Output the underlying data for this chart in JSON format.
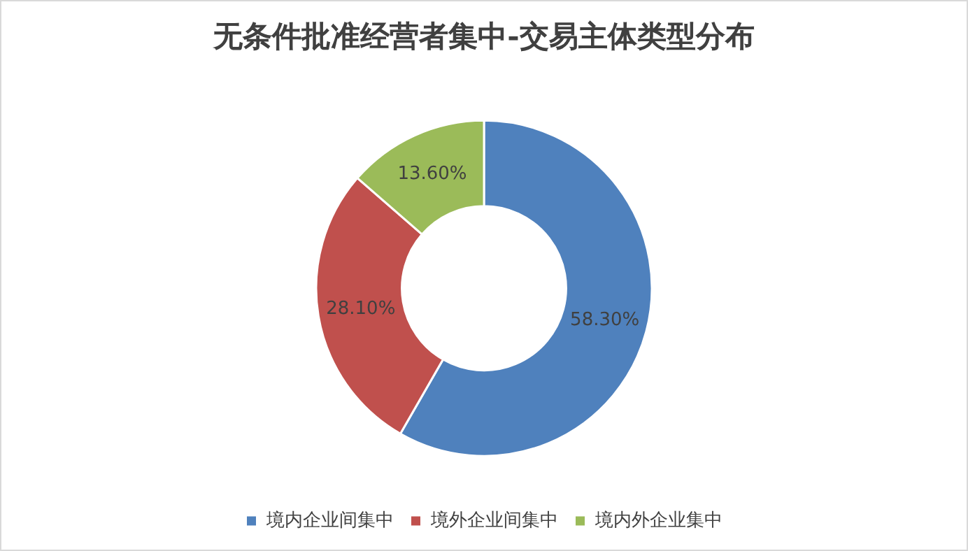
{
  "chart_data": {
    "type": "donut",
    "title": "无条件批准经营者集中-交易主体类型分布",
    "categories": [
      "境内企业间集中",
      "境外企业间集中",
      "境内外企业集中"
    ],
    "values": [
      58.3,
      28.1,
      13.6
    ],
    "colors": [
      "#4f81bd",
      "#c0504d",
      "#9bbb59"
    ],
    "value_labels": [
      "58.30%",
      "28.10%",
      "13.60%"
    ],
    "legend": "bottom"
  }
}
